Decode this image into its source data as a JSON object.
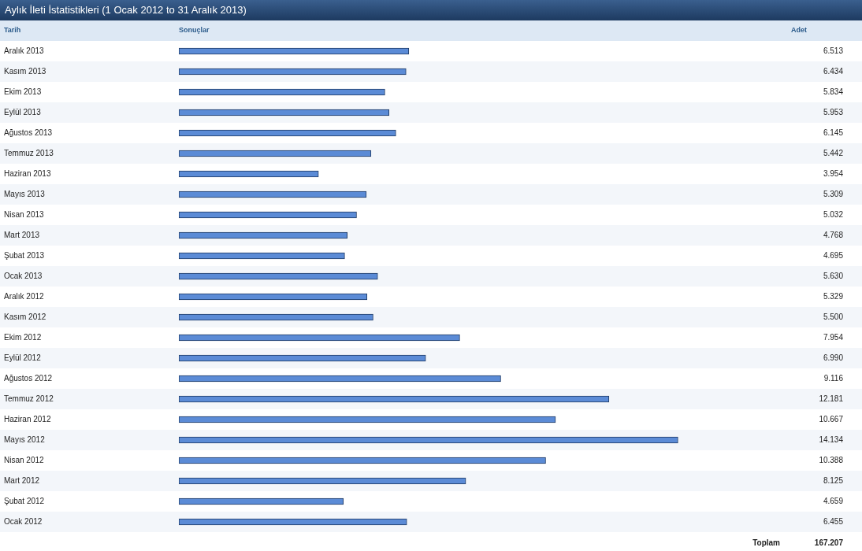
{
  "chart_data": {
    "type": "bar",
    "orientation": "horizontal",
    "title": "Aylık İleti İstatistikleri (1 Ocak 2012 to 31 Aralık 2013)",
    "ylabel": "Tarih",
    "xlabel": "Sonuçlar",
    "categories": [
      "Aralık 2013",
      "Kasım 2013",
      "Ekim 2013",
      "Eylül 2013",
      "Ağustos 2013",
      "Temmuz 2013",
      "Haziran 2013",
      "Mayıs 2013",
      "Nisan 2013",
      "Mart 2013",
      "Şubat 2013",
      "Ocak 2013",
      "Aralık 2012",
      "Kasım 2012",
      "Ekim 2012",
      "Eylül 2012",
      "Ağustos 2012",
      "Temmuz 2012",
      "Haziran 2012",
      "Mayıs 2012",
      "Nisan 2012",
      "Mart 2012",
      "Şubat 2012",
      "Ocak 2012"
    ],
    "values": [
      6513,
      6434,
      5834,
      5953,
      6145,
      5442,
      3954,
      5309,
      5032,
      4768,
      4695,
      5630,
      5329,
      5500,
      7954,
      6990,
      9116,
      12181,
      10667,
      14134,
      10388,
      8125,
      4659,
      6455
    ],
    "value_labels": [
      "6.513",
      "6.434",
      "5.834",
      "5.953",
      "6.145",
      "5.442",
      "3.954",
      "5.309",
      "5.032",
      "4.768",
      "4.695",
      "5.630",
      "5.329",
      "5.500",
      "7.954",
      "6.990",
      "9.116",
      "12.181",
      "10.667",
      "14.134",
      "10.388",
      "8.125",
      "4.659",
      "6.455"
    ],
    "color": "#5b8bd6",
    "annotations": [
      "Adet",
      "Toplam",
      "167.207"
    ],
    "grid": false,
    "legend": false,
    "tick_labels": "y"
  }
}
